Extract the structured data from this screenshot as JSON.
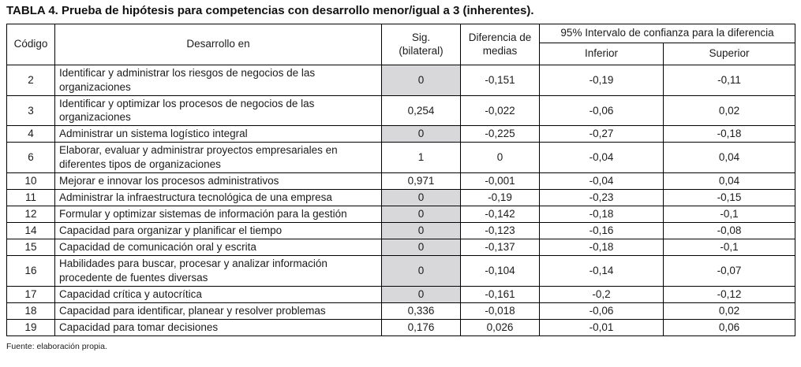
{
  "title": "TABLA 4. Prueba de hipótesis para competencias con desarrollo menor/igual a 3 (inherentes).",
  "footer": "Fuente: elaboración propia.",
  "colors": {
    "shaded_cell": "#d8d8da",
    "border": "#000000",
    "text": "#1c1c1e"
  },
  "table": {
    "headers": {
      "codigo": "Código",
      "desarrollo": "Desarrollo en",
      "sig": "Sig.\n(bilateral)",
      "diferencia": "Diferencia de\nmedias",
      "ci_group": "95% Intervalo de confianza para la diferencia",
      "inferior": "Inferior",
      "superior": "Superior"
    },
    "rows": [
      {
        "codigo": "2",
        "desarrollo": "Identificar y administrar los riesgos de negocios de las organizaciones",
        "sig": "0",
        "sig_shaded": true,
        "diferencia": "-0,151",
        "inferior": "-0,19",
        "superior": "-0,11"
      },
      {
        "codigo": "3",
        "desarrollo": "Identificar y optimizar los procesos de negocios de las organizaciones",
        "sig": "0,254",
        "sig_shaded": false,
        "diferencia": "-0,022",
        "inferior": "-0,06",
        "superior": "0,02"
      },
      {
        "codigo": "4",
        "desarrollo": "Administrar un sistema logístico integral",
        "sig": "0",
        "sig_shaded": true,
        "diferencia": "-0,225",
        "inferior": "-0,27",
        "superior": "-0,18"
      },
      {
        "codigo": "6",
        "desarrollo": "Elaborar, evaluar y administrar proyectos empresariales en diferentes tipos de organizaciones",
        "sig": "1",
        "sig_shaded": false,
        "diferencia": "0",
        "inferior": "-0,04",
        "superior": "0,04"
      },
      {
        "codigo": "10",
        "desarrollo": "Mejorar e innovar los procesos administrativos",
        "sig": "0,971",
        "sig_shaded": false,
        "diferencia": "-0,001",
        "inferior": "-0,04",
        "superior": "0,04"
      },
      {
        "codigo": "11",
        "desarrollo": "Administrar la infraestructura tecnológica de una empresa",
        "sig": "0",
        "sig_shaded": true,
        "diferencia": "-0,19",
        "inferior": "-0,23",
        "superior": "-0,15"
      },
      {
        "codigo": "12",
        "desarrollo": "Formular y optimizar sistemas de información para la gestión",
        "sig": "0",
        "sig_shaded": true,
        "diferencia": "-0,142",
        "inferior": "-0,18",
        "superior": "-0,1"
      },
      {
        "codigo": "14",
        "desarrollo": "Capacidad para organizar y planificar el tiempo",
        "sig": "0",
        "sig_shaded": true,
        "diferencia": "-0,123",
        "inferior": "-0,16",
        "superior": "-0,08"
      },
      {
        "codigo": "15",
        "desarrollo": "Capacidad de comunicación oral y escrita",
        "sig": "0",
        "sig_shaded": true,
        "diferencia": "-0,137",
        "inferior": "-0,18",
        "superior": "-0,1"
      },
      {
        "codigo": "16",
        "desarrollo": "Habilidades para buscar, procesar y analizar información procedente de fuentes diversas",
        "sig": "0",
        "sig_shaded": true,
        "diferencia": "-0,104",
        "inferior": "-0,14",
        "superior": "-0,07"
      },
      {
        "codigo": "17",
        "desarrollo": "Capacidad crítica y autocrítica",
        "sig": "0",
        "sig_shaded": true,
        "diferencia": "-0,161",
        "inferior": "-0,2",
        "superior": "-0,12"
      },
      {
        "codigo": "18",
        "desarrollo": "Capacidad para identificar, planear y resolver problemas",
        "sig": "0,336",
        "sig_shaded": false,
        "diferencia": "-0,018",
        "inferior": "-0,06",
        "superior": "0,02"
      },
      {
        "codigo": "19",
        "desarrollo": "Capacidad para tomar decisiones",
        "sig": "0,176",
        "sig_shaded": false,
        "diferencia": "0,026",
        "inferior": "-0,01",
        "superior": "0,06"
      }
    ]
  },
  "chart_data": {
    "type": "table",
    "title": "TABLA 4. Prueba de hipótesis para competencias con desarrollo menor/igual a 3 (inherentes).",
    "columns": [
      "Código",
      "Desarrollo en",
      "Sig. (bilateral)",
      "Diferencia de medias",
      "95% IC Inferior",
      "95% IC Superior"
    ],
    "rows": [
      [
        "2",
        "Identificar y administrar los riesgos de negocios de las organizaciones",
        "0",
        "-0,151",
        "-0,19",
        "-0,11"
      ],
      [
        "3",
        "Identificar y optimizar los procesos de negocios de las organizaciones",
        "0,254",
        "-0,022",
        "-0,06",
        "0,02"
      ],
      [
        "4",
        "Administrar un sistema logístico integral",
        "0",
        "-0,225",
        "-0,27",
        "-0,18"
      ],
      [
        "6",
        "Elaborar, evaluar y administrar proyectos empresariales en diferentes tipos de organizaciones",
        "1",
        "0",
        "-0,04",
        "0,04"
      ],
      [
        "10",
        "Mejorar e innovar los procesos administrativos",
        "0,971",
        "-0,001",
        "-0,04",
        "0,04"
      ],
      [
        "11",
        "Administrar la infraestructura tecnológica de una empresa",
        "0",
        "-0,19",
        "-0,23",
        "-0,15"
      ],
      [
        "12",
        "Formular y optimizar sistemas de información para la gestión",
        "0",
        "-0,142",
        "-0,18",
        "-0,1"
      ],
      [
        "14",
        "Capacidad para organizar y planificar el tiempo",
        "0",
        "-0,123",
        "-0,16",
        "-0,08"
      ],
      [
        "15",
        "Capacidad de comunicación oral y escrita",
        "0",
        "-0,137",
        "-0,18",
        "-0,1"
      ],
      [
        "16",
        "Habilidades para buscar, procesar y analizar información procedente de fuentes diversas",
        "0",
        "-0,104",
        "-0,14",
        "-0,07"
      ],
      [
        "17",
        "Capacidad crítica y autocrítica",
        "0",
        "-0,161",
        "-0,2",
        "-0,12"
      ],
      [
        "18",
        "Capacidad para identificar, planear y resolver problemas",
        "0,336",
        "-0,018",
        "-0,06",
        "0,02"
      ],
      [
        "19",
        "Capacidad para tomar decisiones",
        "0,176",
        "0,026",
        "-0,01",
        "0,06"
      ]
    ],
    "notes": "Gray shading on Sig. (bilateral) cells marks values of 0 (rows 2, 4, 11, 12, 14, 15, 16, 17)."
  }
}
